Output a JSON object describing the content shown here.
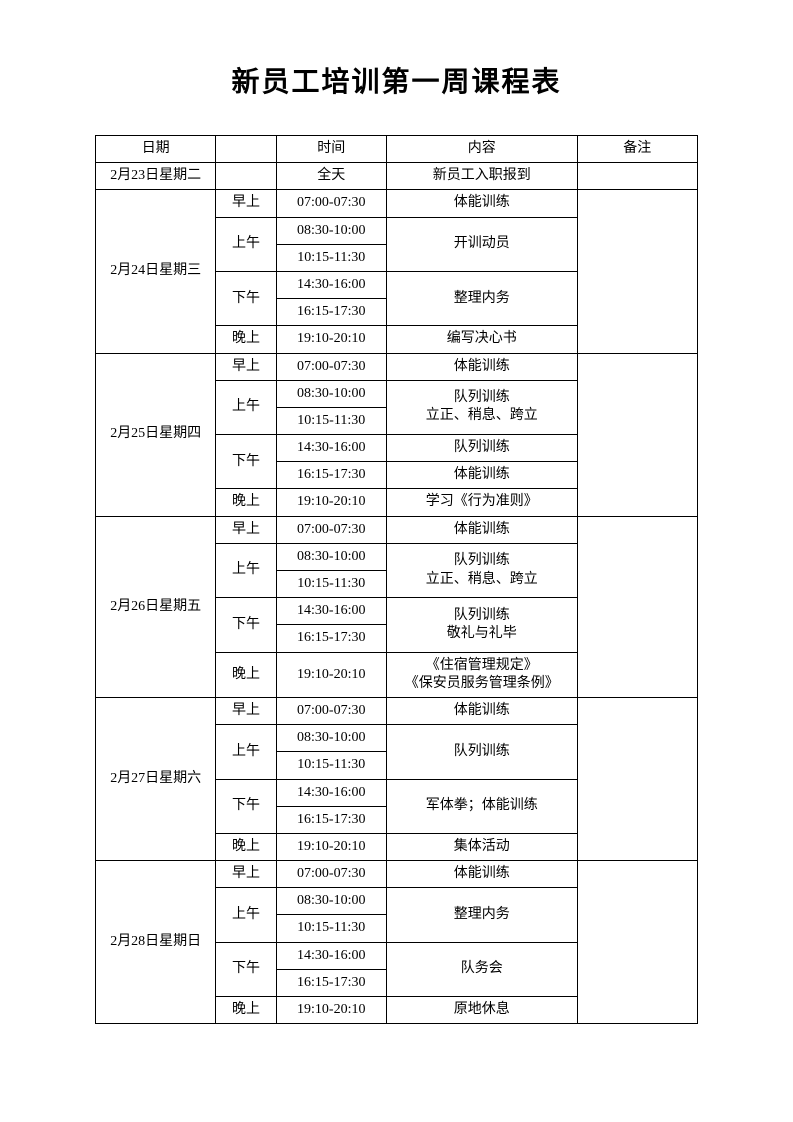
{
  "title": "新员工培训第一周课程表",
  "headers": {
    "date": "日期",
    "period": "",
    "time": "时间",
    "content": "内容",
    "note": "备注"
  },
  "day0": {
    "date": "2月23日星期二",
    "time": "全天",
    "content": "新员工入职报到"
  },
  "day1": {
    "date": "2月24日星期三",
    "p_morning": "早上",
    "t_morning": "07:00-07:30",
    "c_morning": "体能训练",
    "p_am": "上午",
    "t_am1": "08:30-10:00",
    "t_am2": "10:15-11:30",
    "c_am": "开训动员",
    "p_pm": "下午",
    "t_pm1": "14:30-16:00",
    "t_pm2": "16:15-17:30",
    "c_pm": "整理内务",
    "p_eve": "晚上",
    "t_eve": "19:10-20:10",
    "c_eve": "编写决心书"
  },
  "day2": {
    "date": "2月25日星期四",
    "p_morning": "早上",
    "t_morning": "07:00-07:30",
    "c_morning": "体能训练",
    "p_am": "上午",
    "t_am1": "08:30-10:00",
    "t_am2": "10:15-11:30",
    "c_am": "队列训练\n立正、稍息、跨立",
    "p_pm": "下午",
    "t_pm1": "14:30-16:00",
    "t_pm2": "16:15-17:30",
    "c_pm1": "队列训练",
    "c_pm2": "体能训练",
    "p_eve": "晚上",
    "t_eve": "19:10-20:10",
    "c_eve": "学习《行为准则》"
  },
  "day3": {
    "date": "2月26日星期五",
    "p_morning": "早上",
    "t_morning": "07:00-07:30",
    "c_morning": "体能训练",
    "p_am": "上午",
    "t_am1": "08:30-10:00",
    "t_am2": "10:15-11:30",
    "c_am": "队列训练\n立正、稍息、跨立",
    "p_pm": "下午",
    "t_pm1": "14:30-16:00",
    "t_pm2": "16:15-17:30",
    "c_pm": "队列训练\n敬礼与礼毕",
    "p_eve": "晚上",
    "t_eve": "19:10-20:10",
    "c_eve": "《住宿管理规定》\n《保安员服务管理条例》"
  },
  "day4": {
    "date": "2月27日星期六",
    "p_morning": "早上",
    "t_morning": "07:00-07:30",
    "c_morning": "体能训练",
    "p_am": "上午",
    "t_am1": "08:30-10:00",
    "t_am2": "10:15-11:30",
    "c_am": "队列训练",
    "p_pm": "下午",
    "t_pm1": "14:30-16:00",
    "t_pm2": "16:15-17:30",
    "c_pm": "军体拳；体能训练",
    "p_eve": "晚上",
    "t_eve": "19:10-20:10",
    "c_eve": "集体活动"
  },
  "day5": {
    "date": "2月28日星期日",
    "p_morning": "早上",
    "t_morning": "07:00-07:30",
    "c_morning": "体能训练",
    "p_am": "上午",
    "t_am1": "08:30-10:00",
    "t_am2": "10:15-11:30",
    "c_am": "整理内务",
    "p_pm": "下午",
    "t_pm1": "14:30-16:00",
    "t_pm2": "16:15-17:30",
    "c_pm": "队务会",
    "p_eve": "晚上",
    "t_eve": "19:10-20:10",
    "c_eve": "原地休息"
  }
}
